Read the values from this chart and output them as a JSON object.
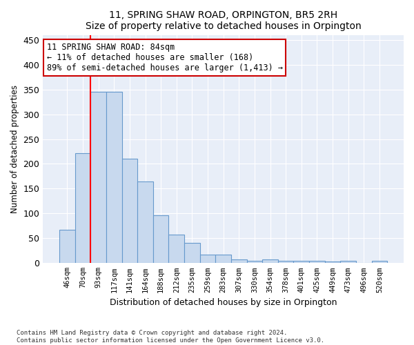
{
  "title": "11, SPRING SHAW ROAD, ORPINGTON, BR5 2RH",
  "subtitle": "Size of property relative to detached houses in Orpington",
  "xlabel": "Distribution of detached houses by size in Orpington",
  "ylabel": "Number of detached properties",
  "bar_labels": [
    "46sqm",
    "70sqm",
    "93sqm",
    "117sqm",
    "141sqm",
    "164sqm",
    "188sqm",
    "212sqm",
    "235sqm",
    "259sqm",
    "283sqm",
    "307sqm",
    "330sqm",
    "354sqm",
    "378sqm",
    "401sqm",
    "425sqm",
    "449sqm",
    "473sqm",
    "496sqm",
    "520sqm"
  ],
  "bar_values": [
    67,
    222,
    345,
    345,
    210,
    165,
    97,
    57,
    41,
    17,
    17,
    8,
    5,
    7,
    5,
    4,
    4,
    3,
    4,
    0,
    4
  ],
  "bar_color": "#c8d9ee",
  "bar_edge_color": "#6699cc",
  "red_line_x": 1.5,
  "annotation_line1": "11 SPRING SHAW ROAD: 84sqm",
  "annotation_line2": "← 11% of detached houses are smaller (168)",
  "annotation_line3": "89% of semi-detached houses are larger (1,413) →",
  "annotation_box_color": "#ffffff",
  "annotation_box_edge_color": "#cc0000",
  "ylim": [
    0,
    460
  ],
  "yticks": [
    0,
    50,
    100,
    150,
    200,
    250,
    300,
    350,
    400,
    450
  ],
  "footer_line1": "Contains HM Land Registry data © Crown copyright and database right 2024.",
  "footer_line2": "Contains public sector information licensed under the Open Government Licence v3.0.",
  "plot_bg_color": "#e8eef8",
  "fig_bg_color": "#ffffff",
  "grid_color": "#ffffff",
  "bar_width": 1.0
}
